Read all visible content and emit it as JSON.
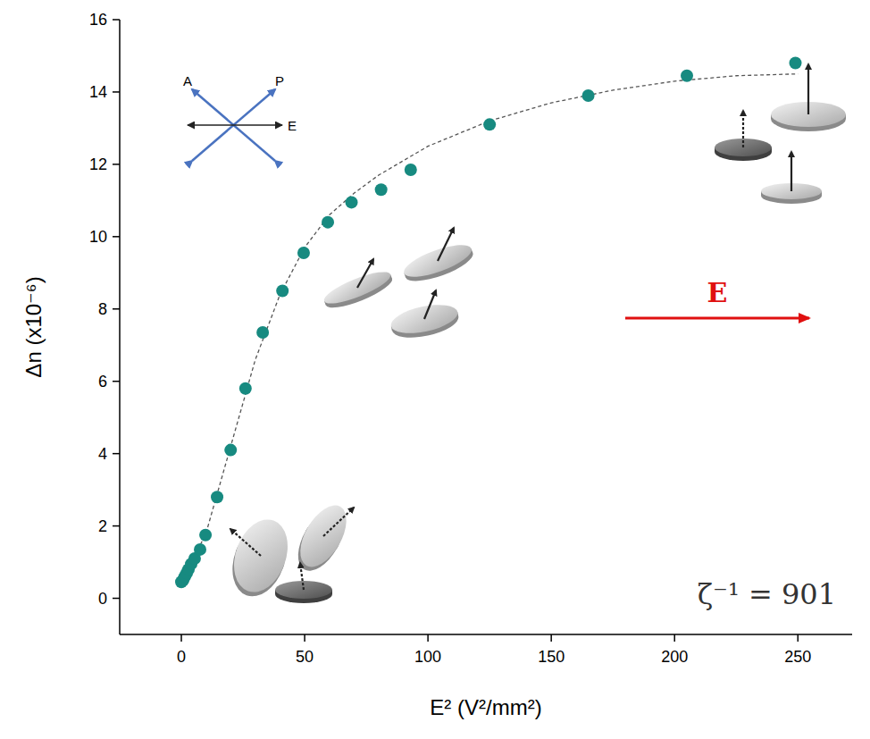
{
  "chart_data": {
    "type": "scatter",
    "x_label": "E² (V²/mm²)",
    "y_label": "Δn (x10⁻⁶)",
    "xlim": [
      -25,
      272
    ],
    "ylim": [
      -1,
      16
    ],
    "xticks": [
      0,
      50,
      100,
      150,
      200,
      250
    ],
    "yticks": [
      0,
      2,
      4,
      6,
      8,
      10,
      12,
      14,
      16
    ],
    "grid": false,
    "annotations": {
      "parameter": "ζ⁻¹ = 901",
      "field_label": "E",
      "analyzer": "A",
      "polarizer": "P",
      "field_direction": "E"
    },
    "series": [
      {
        "type": "scatter",
        "color": "#178a80",
        "marker": "circle",
        "x": [
          0,
          0.7,
          1.4,
          2.2,
          2.9,
          4,
          5.4,
          7.6,
          9.8,
          14.5,
          20,
          26,
          33,
          41,
          49.6,
          59.4,
          69,
          81,
          93,
          125,
          165,
          205,
          249
        ],
        "values": [
          0.45,
          0.5,
          0.6,
          0.7,
          0.8,
          0.95,
          1.1,
          1.35,
          1.75,
          2.8,
          4.1,
          5.8,
          7.35,
          8.5,
          9.55,
          10.4,
          10.95,
          11.3,
          11.85,
          13.1,
          13.9,
          14.45,
          14.8
        ]
      },
      {
        "type": "line",
        "color": "#555555",
        "line_style": "dashed",
        "x": [
          0,
          10,
          20,
          30,
          40,
          50,
          60,
          70,
          80,
          90,
          100,
          125,
          150,
          175,
          200,
          225,
          250
        ],
        "values": [
          0.4,
          1.8,
          4.2,
          6.6,
          8.4,
          9.7,
          10.6,
          11.2,
          11.7,
          12.1,
          12.5,
          13.2,
          13.7,
          14.05,
          14.3,
          14.45,
          14.5
        ]
      }
    ]
  }
}
